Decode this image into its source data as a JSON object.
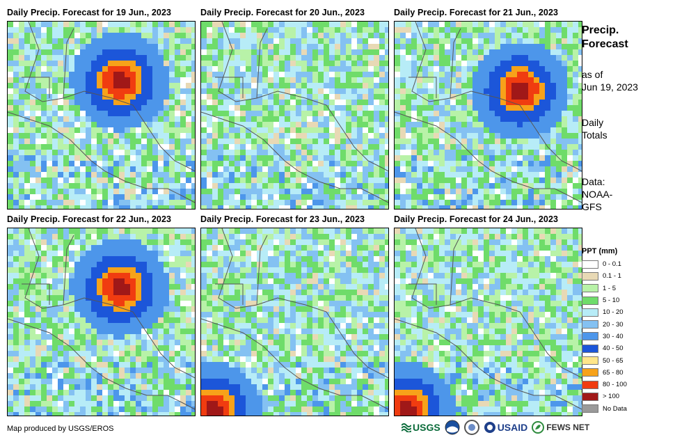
{
  "panels": [
    {
      "title": "Daily Precip. Forecast for 19 Jun., 2023",
      "hotspot": "north-central"
    },
    {
      "title": "Daily Precip. Forecast for 20 Jun., 2023",
      "hotspot": "none"
    },
    {
      "title": "Daily Precip. Forecast for 21 Jun., 2023",
      "hotspot": "north-east"
    },
    {
      "title": "Daily Precip. Forecast for 22 Jun., 2023",
      "hotspot": "north-central"
    },
    {
      "title": "Daily Precip. Forecast for 23 Jun., 2023",
      "hotspot": "south-west"
    },
    {
      "title": "Daily Precip. Forecast for 24 Jun., 2023",
      "hotspot": "south-west"
    }
  ],
  "sidebar": {
    "title_line1": "Precip.",
    "title_line2": "Forecast",
    "asof_line1": "as of",
    "asof_line2": "Jun 19, 2023",
    "daily_line1": "Daily",
    "daily_line2": "Totals",
    "data_line1": "Data:",
    "data_line2": "NOAA-",
    "data_line3": "GFS"
  },
  "legend": {
    "title": "PPT (mm)",
    "items": [
      {
        "label": "0 - 0.1",
        "color": "#ffffff"
      },
      {
        "label": "0.1 - 1",
        "color": "#e8d9b5"
      },
      {
        "label": "1 - 5",
        "color": "#b8f2a8"
      },
      {
        "label": "5 - 10",
        "color": "#6fdc6a"
      },
      {
        "label": "10 - 20",
        "color": "#b7ecf7"
      },
      {
        "label": "20 - 30",
        "color": "#84c1f2"
      },
      {
        "label": "30 - 40",
        "color": "#4d96ea"
      },
      {
        "label": "40 - 50",
        "color": "#1c56d9"
      },
      {
        "label": "50 - 65",
        "color": "#ffe68a"
      },
      {
        "label": "65 - 80",
        "color": "#f7a21a"
      },
      {
        "label": "80 - 100",
        "color": "#f03c10"
      },
      {
        "label": "> 100",
        "color": "#a01818"
      },
      {
        "label": "No Data",
        "color": "#9a9a9a"
      }
    ]
  },
  "footer": {
    "credit": "Map produced by USGS/EROS",
    "logo_usgs": "USGS",
    "logo_usaid": "USAID",
    "logo_fewsnet": "FEWS NET"
  }
}
